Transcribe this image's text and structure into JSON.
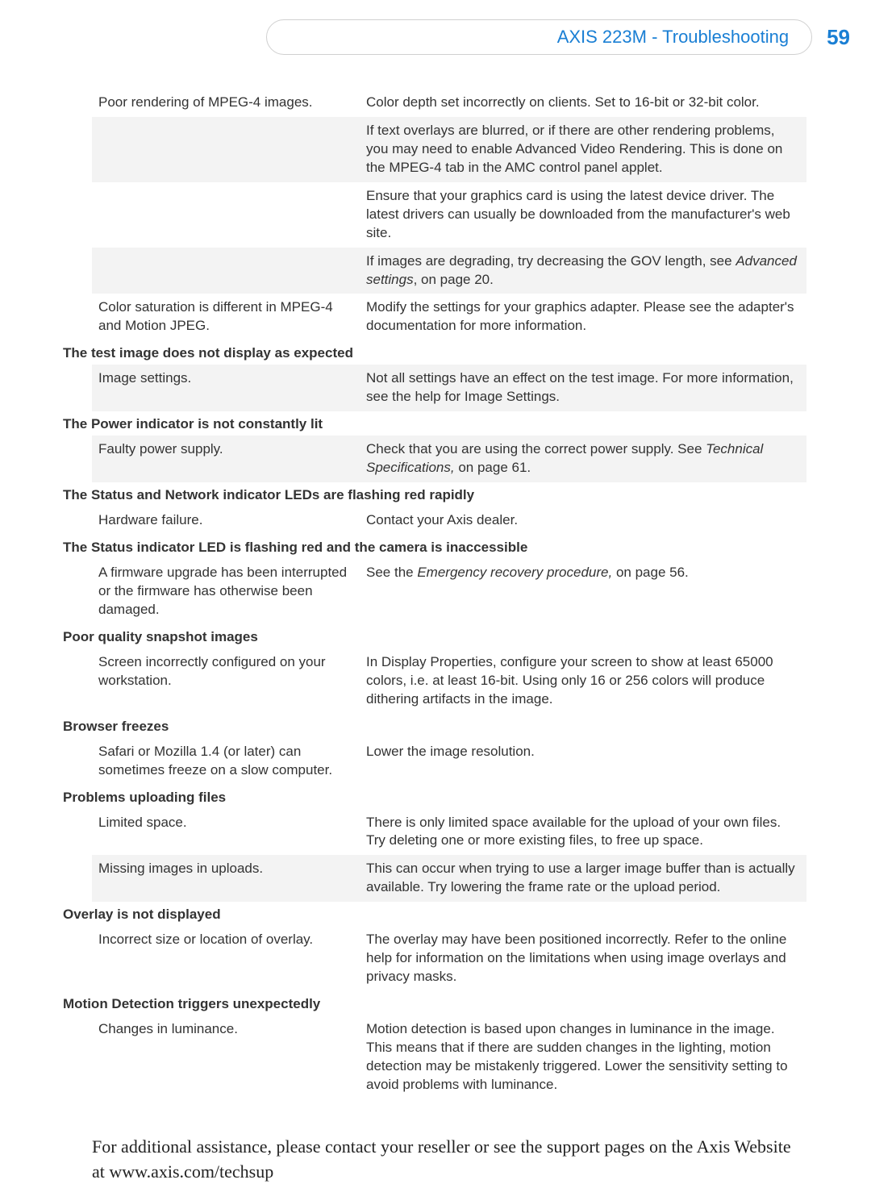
{
  "header": {
    "title": "AXIS 223M - Troubleshooting",
    "page_number": "59"
  },
  "sections": [
    {
      "heading": null,
      "rows": [
        {
          "shaded": false,
          "left": "Poor rendering of MPEG-4 images.",
          "right": "Color depth set incorrectly on clients. Set to 16-bit or 32-bit color."
        },
        {
          "shaded": true,
          "left": "",
          "right": "If text overlays are blurred, or if there are other rendering problems, you may need to enable Advanced Video Rendering. This is done on the MPEG-4 tab in the AMC control panel applet."
        },
        {
          "shaded": false,
          "left": "",
          "right": "Ensure that your graphics card is using the latest device driver. The latest drivers can usually be downloaded from the manufacturer's web site."
        },
        {
          "shaded": true,
          "left": "",
          "right_parts": [
            {
              "text": "If images are degrading, try decreasing the GOV length, see "
            },
            {
              "text": "Advanced settings",
              "italic": true
            },
            {
              "text": ", on page 20."
            }
          ]
        },
        {
          "shaded": false,
          "left": "Color saturation is different in MPEG-4 and Motion JPEG.",
          "right": "Modify the settings for your graphics adapter. Please see the adapter's documentation for more information."
        }
      ]
    },
    {
      "heading": "The test image does not display as expected",
      "rows": [
        {
          "shaded": true,
          "left": "Image settings.",
          "right": "Not all settings have an effect on the test image. For more information, see the help for Image Settings."
        }
      ]
    },
    {
      "heading": "The Power indicator is not constantly lit",
      "rows": [
        {
          "shaded": true,
          "left": "Faulty power supply.",
          "right_parts": [
            {
              "text": "Check that you are using the correct power supply. See "
            },
            {
              "text": "Technical Specifications,",
              "italic": true
            },
            {
              "text": " on page 61."
            }
          ]
        }
      ]
    },
    {
      "heading": "The Status and Network indicator LEDs are flashing red rapidly",
      "rows": [
        {
          "shaded": false,
          "left": "Hardware failure.",
          "right": "Contact your Axis dealer."
        }
      ]
    },
    {
      "heading": "The Status indicator LED is flashing red and the camera is inaccessible",
      "rows": [
        {
          "shaded": false,
          "left": "A firmware upgrade has been inter­rupted or the firmware has otherwise been damaged.",
          "right_parts": [
            {
              "text": "See the "
            },
            {
              "text": "Emergency recovery procedure,",
              "italic": true
            },
            {
              "text": " on page 56."
            }
          ]
        }
      ]
    },
    {
      "heading": "Poor quality snapshot images",
      "rows": [
        {
          "shaded": false,
          "left": "Screen incorrectly configured on your workstation.",
          "right": "In Display Properties, configure your screen to show at least 65000 colors, i.e. at least 16-bit. Using only 16 or 256 colors will produce dithering artifacts in the image."
        }
      ]
    },
    {
      "heading": "Browser freezes",
      "rows": [
        {
          "shaded": false,
          "left": "Safari or Mozilla 1.4 (or later) can sometimes freeze on a slow computer.",
          "right": "Lower the image resolution."
        }
      ]
    },
    {
      "heading": "Problems uploading files",
      "rows": [
        {
          "shaded": false,
          "left": "Limited space.",
          "right": "There is only limited space available for the upload of your own files. Try deleting one or more existing files, to free up space."
        },
        {
          "shaded": true,
          "left": "Missing images in uploads.",
          "right": "This can occur when trying to use a larger image buffer than is actually available. Try lowering the frame rate or the upload period."
        }
      ]
    },
    {
      "heading": "Overlay is not displayed",
      "rows": [
        {
          "shaded": false,
          "left": "Incorrect size or location of overlay.",
          "right": "The overlay may have been positioned incorrectly. Refer to the online help for informa­tion on the limitations when using image overlays and privacy masks."
        }
      ]
    },
    {
      "heading": "Motion Detection triggers unexpectedly",
      "rows": [
        {
          "shaded": false,
          "left": "Changes in luminance.",
          "right": "Motion detection is based upon changes in luminance in the image. This means that if there are sudden changes in the lighting, motion detection may be mistakenly trig­gered. Lower the sensitivity setting to avoid problems with luminance."
        }
      ]
    }
  ],
  "footer": "For additional assistance, please contact your reseller or see the support pages on the Axis Website at www.axis.com/techsup"
}
